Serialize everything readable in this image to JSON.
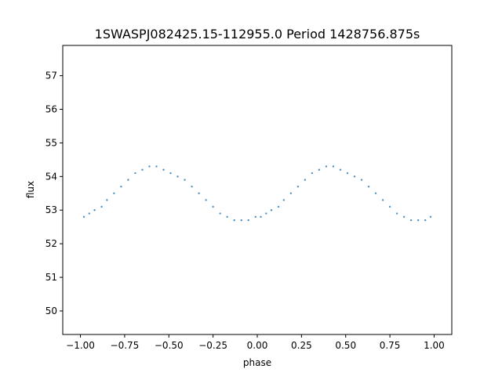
{
  "chart_data": {
    "type": "scatter",
    "title": "1SWASPJ082425.15-112955.0 Period 1428756.875s",
    "xlabel": "phase",
    "ylabel": "flux",
    "xlim": [
      -1.1,
      1.1
    ],
    "ylim": [
      49.3,
      57.9
    ],
    "xticks": [
      -1.0,
      -0.75,
      -0.5,
      -0.25,
      0.0,
      0.25,
      0.5,
      0.75,
      1.0
    ],
    "xtick_labels": [
      "−1.00",
      "−0.75",
      "−0.50",
      "−0.25",
      "0.00",
      "0.25",
      "0.50",
      "0.75",
      "1.00"
    ],
    "yticks": [
      50,
      51,
      52,
      53,
      54,
      55,
      56,
      57
    ],
    "ytick_labels": [
      "50",
      "51",
      "52",
      "53",
      "54",
      "55",
      "56",
      "57"
    ],
    "grid": false,
    "color": "#1f77b4",
    "series": [
      {
        "phase": [
          -0.98,
          -0.95,
          -0.92,
          -0.88,
          -0.85,
          -0.81,
          -0.77,
          -0.73,
          -0.69,
          -0.65,
          -0.61,
          -0.57,
          -0.53,
          -0.49,
          -0.45,
          -0.41,
          -0.37,
          -0.33,
          -0.29,
          -0.25,
          -0.21,
          -0.17,
          -0.13,
          -0.09,
          -0.05,
          -0.01,
          0.02,
          0.05,
          0.08,
          0.12,
          0.15,
          0.19,
          0.23,
          0.27,
          0.31,
          0.35,
          0.39,
          0.43,
          0.47,
          0.51,
          0.55,
          0.59,
          0.63,
          0.67,
          0.71,
          0.75,
          0.79,
          0.83,
          0.87,
          0.91,
          0.95,
          0.98
        ],
        "flux": [
          52.8,
          52.9,
          53.0,
          53.1,
          53.3,
          53.5,
          53.7,
          53.9,
          54.1,
          54.2,
          54.3,
          54.3,
          54.2,
          54.1,
          54.0,
          53.9,
          53.7,
          53.5,
          53.3,
          53.1,
          52.9,
          52.8,
          52.7,
          52.7,
          52.7,
          52.8,
          52.8,
          52.9,
          53.0,
          53.1,
          53.3,
          53.5,
          53.7,
          53.9,
          54.1,
          54.2,
          54.3,
          54.3,
          54.2,
          54.1,
          54.0,
          53.9,
          53.7,
          53.5,
          53.3,
          53.1,
          52.9,
          52.8,
          52.7,
          52.7,
          52.7,
          52.8
        ]
      }
    ]
  }
}
